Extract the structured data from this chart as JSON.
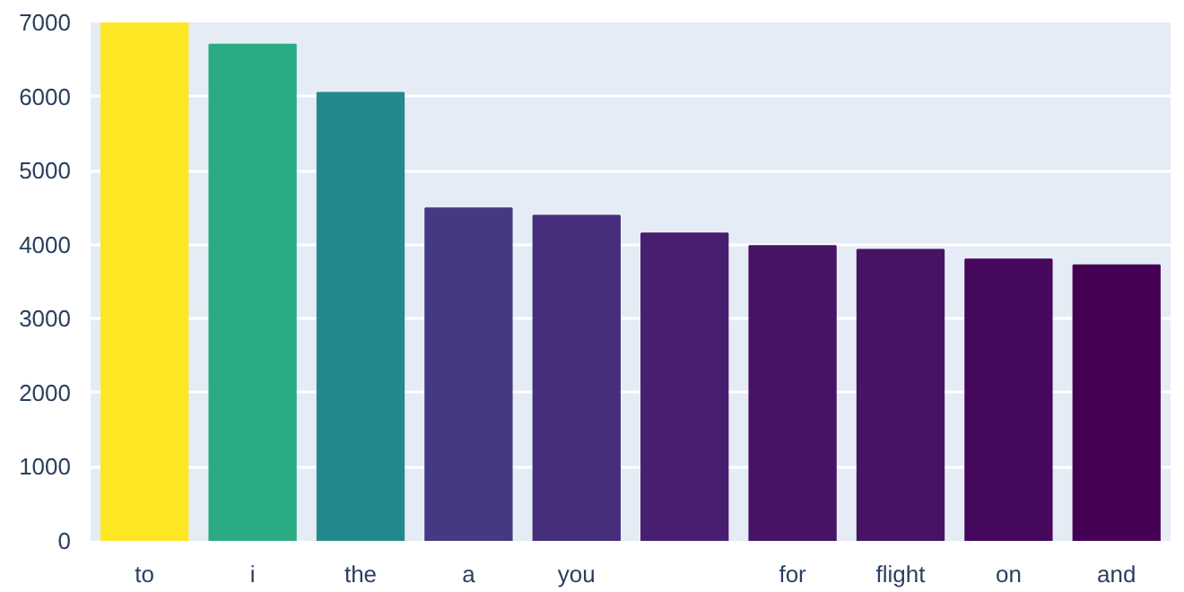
{
  "chart_data": {
    "type": "bar",
    "categories": [
      "to",
      "i",
      "the",
      "a",
      "you",
      null,
      "for",
      "flight",
      "on",
      "and"
    ],
    "values": [
      7000,
      6700,
      6050,
      4490,
      4390,
      4150,
      3980,
      3930,
      3800,
      3720
    ],
    "colors": [
      "#fde725",
      "#2aab84",
      "#228a8d",
      "#443a83",
      "#472e7c",
      "#481e70",
      "#471365",
      "#471365",
      "#46085c",
      "#440154"
    ],
    "ylim": [
      0,
      7000
    ],
    "yticks": [
      0,
      1000,
      2000,
      3000,
      4000,
      5000,
      6000,
      7000
    ],
    "grid": "y"
  }
}
